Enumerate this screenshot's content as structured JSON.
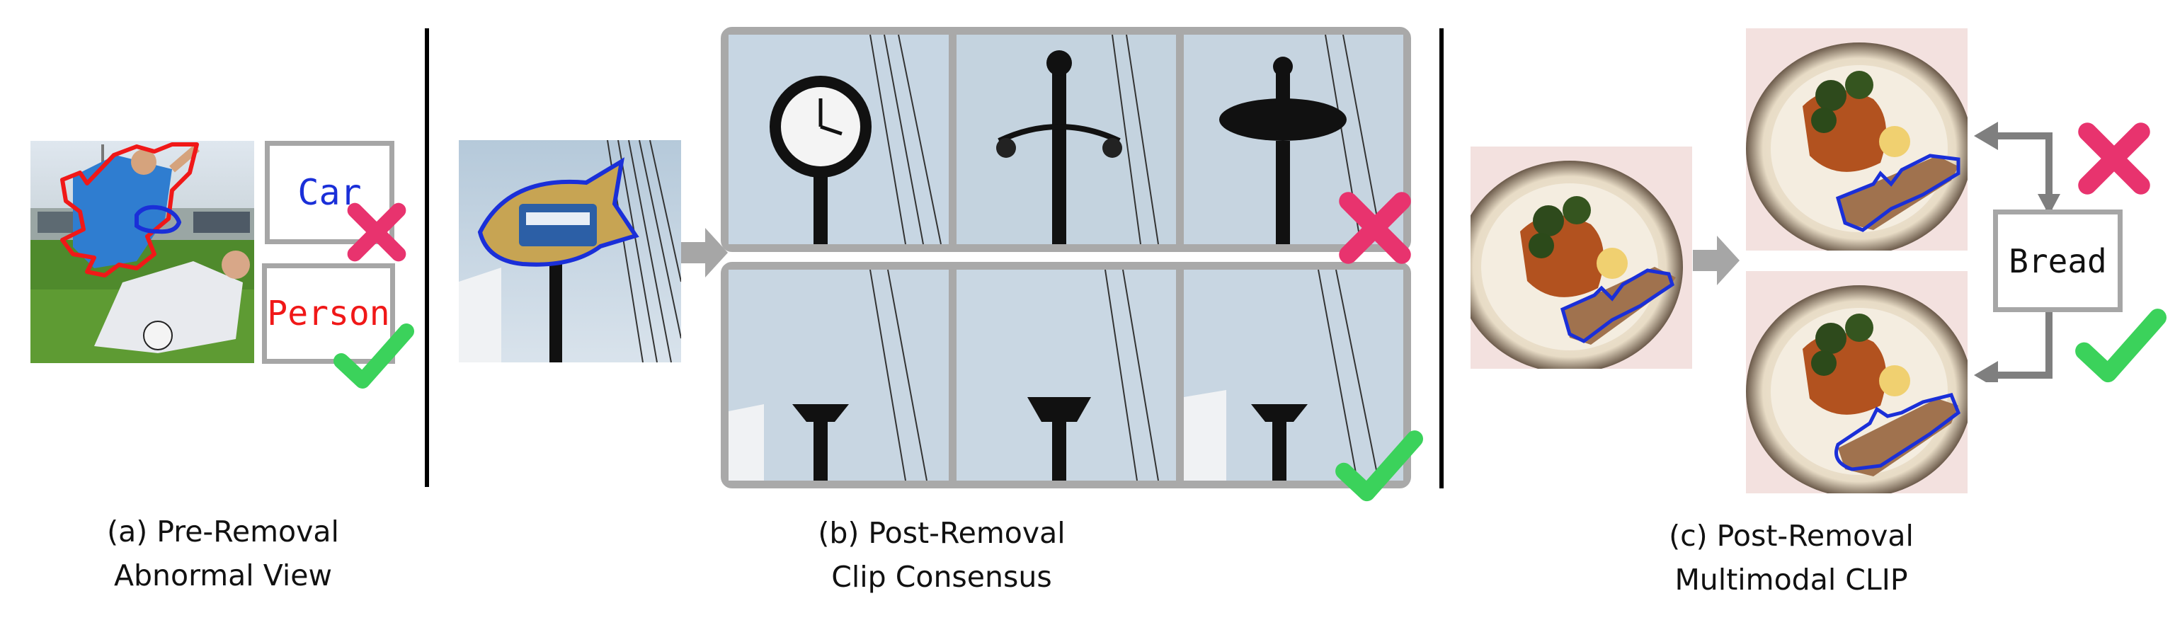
{
  "colors": {
    "cross": "#e8336e",
    "check": "#3bd25b",
    "arrow": "#a6a6a6",
    "frame": "#a9a9a9",
    "blue_outline": "#1a2fd8",
    "red_outline": "#f01818",
    "car_text": "#1a2fd8",
    "person_text": "#f01818"
  },
  "panel_a": {
    "labels": {
      "car": "Car",
      "person": "Person"
    },
    "caption": {
      "line1": "(a) Pre-Removal",
      "line2": "Abnormal View"
    }
  },
  "panel_b": {
    "caption": {
      "line1": "(b) Post-Removal",
      "line2": "Clip Consensus"
    }
  },
  "panel_c": {
    "label": "Bread",
    "caption": {
      "line1": "(c) Post-Removal",
      "line2": "Multimodal CLIP"
    }
  },
  "icons": [
    "cross-icon",
    "check-icon",
    "arrow-right-icon",
    "double-arrow-icon"
  ]
}
